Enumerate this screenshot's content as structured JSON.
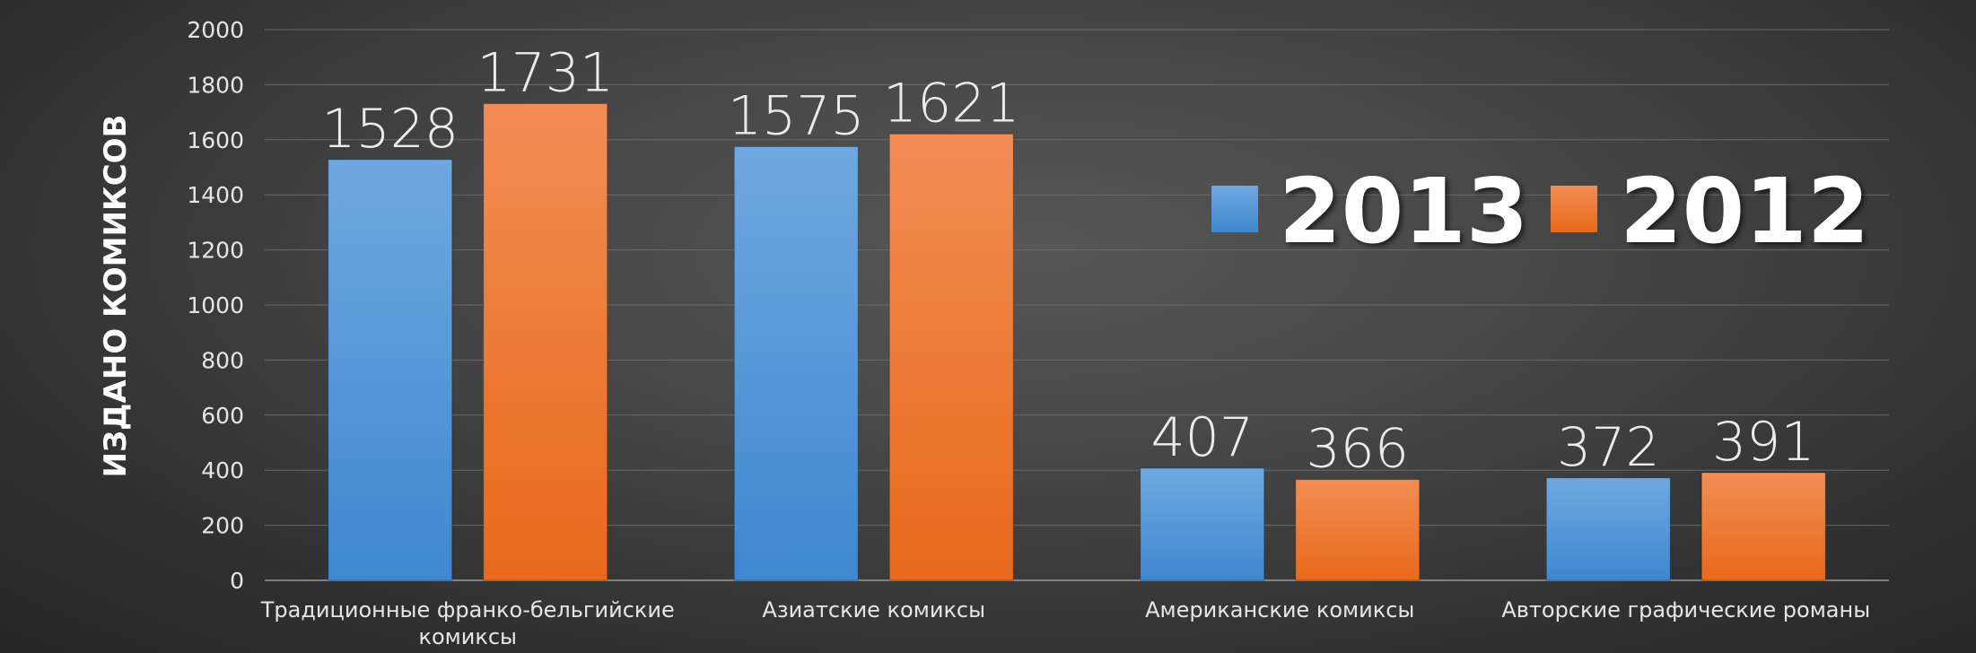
{
  "chart_data": {
    "type": "bar",
    "title": "",
    "xlabel": "",
    "ylabel": "ИЗДАНО КОМИКСОВ",
    "ylim": [
      0,
      2000
    ],
    "yticks": [
      0,
      200,
      400,
      600,
      800,
      1000,
      1200,
      1400,
      1600,
      1800,
      2000
    ],
    "grid": true,
    "legend_position": "right",
    "categories": [
      "Традиционные франко-бельгийские комиксы",
      "Азиатские комиксы",
      "Американские комиксы",
      "Авторские графические романы"
    ],
    "series": [
      {
        "name": "2013",
        "color": "#4a90d9",
        "values": [
          1528,
          1575,
          407,
          372
        ]
      },
      {
        "name": "2012",
        "color": "#f07d2a",
        "values": [
          1731,
          1621,
          366,
          391
        ]
      }
    ]
  }
}
